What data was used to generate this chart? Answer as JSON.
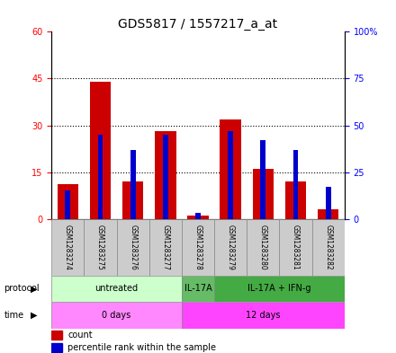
{
  "title": "GDS5817 / 1557217_a_at",
  "samples": [
    "GSM1283274",
    "GSM1283275",
    "GSM1283276",
    "GSM1283277",
    "GSM1283278",
    "GSM1283279",
    "GSM1283280",
    "GSM1283281",
    "GSM1283282"
  ],
  "count_values": [
    11,
    44,
    12,
    28,
    1,
    32,
    16,
    12,
    3
  ],
  "percentile_values": [
    15,
    45,
    37,
    45,
    3,
    47,
    42,
    37,
    17
  ],
  "left_ylim": [
    0,
    60
  ],
  "right_ylim": [
    0,
    100
  ],
  "left_yticks": [
    0,
    15,
    30,
    45,
    60
  ],
  "left_yticklabels": [
    "0",
    "15",
    "30",
    "45",
    "60"
  ],
  "right_yticks": [
    0,
    25,
    50,
    75,
    100
  ],
  "right_yticklabels": [
    "0",
    "25",
    "50",
    "75",
    "100%"
  ],
  "bar_color": "#cc0000",
  "percentile_color": "#0000cc",
  "protocol_groups": [
    {
      "label": "untreated",
      "start": 0,
      "end": 4,
      "color": "#ccffcc"
    },
    {
      "label": "IL-17A",
      "start": 4,
      "end": 5,
      "color": "#66bb66"
    },
    {
      "label": "IL-17A + IFN-g",
      "start": 5,
      "end": 9,
      "color": "#44aa44"
    }
  ],
  "time_groups": [
    {
      "label": "0 days",
      "start": 0,
      "end": 4,
      "color": "#ff88ff"
    },
    {
      "label": "12 days",
      "start": 4,
      "end": 9,
      "color": "#ff44ff"
    }
  ],
  "protocol_label": "protocol",
  "time_label": "time",
  "legend_count_label": "count",
  "legend_percentile_label": "percentile rank within the sample",
  "bar_width": 0.65,
  "sample_box_color": "#cccccc",
  "title_fontsize": 10,
  "tick_fontsize": 7,
  "annot_fontsize": 7
}
